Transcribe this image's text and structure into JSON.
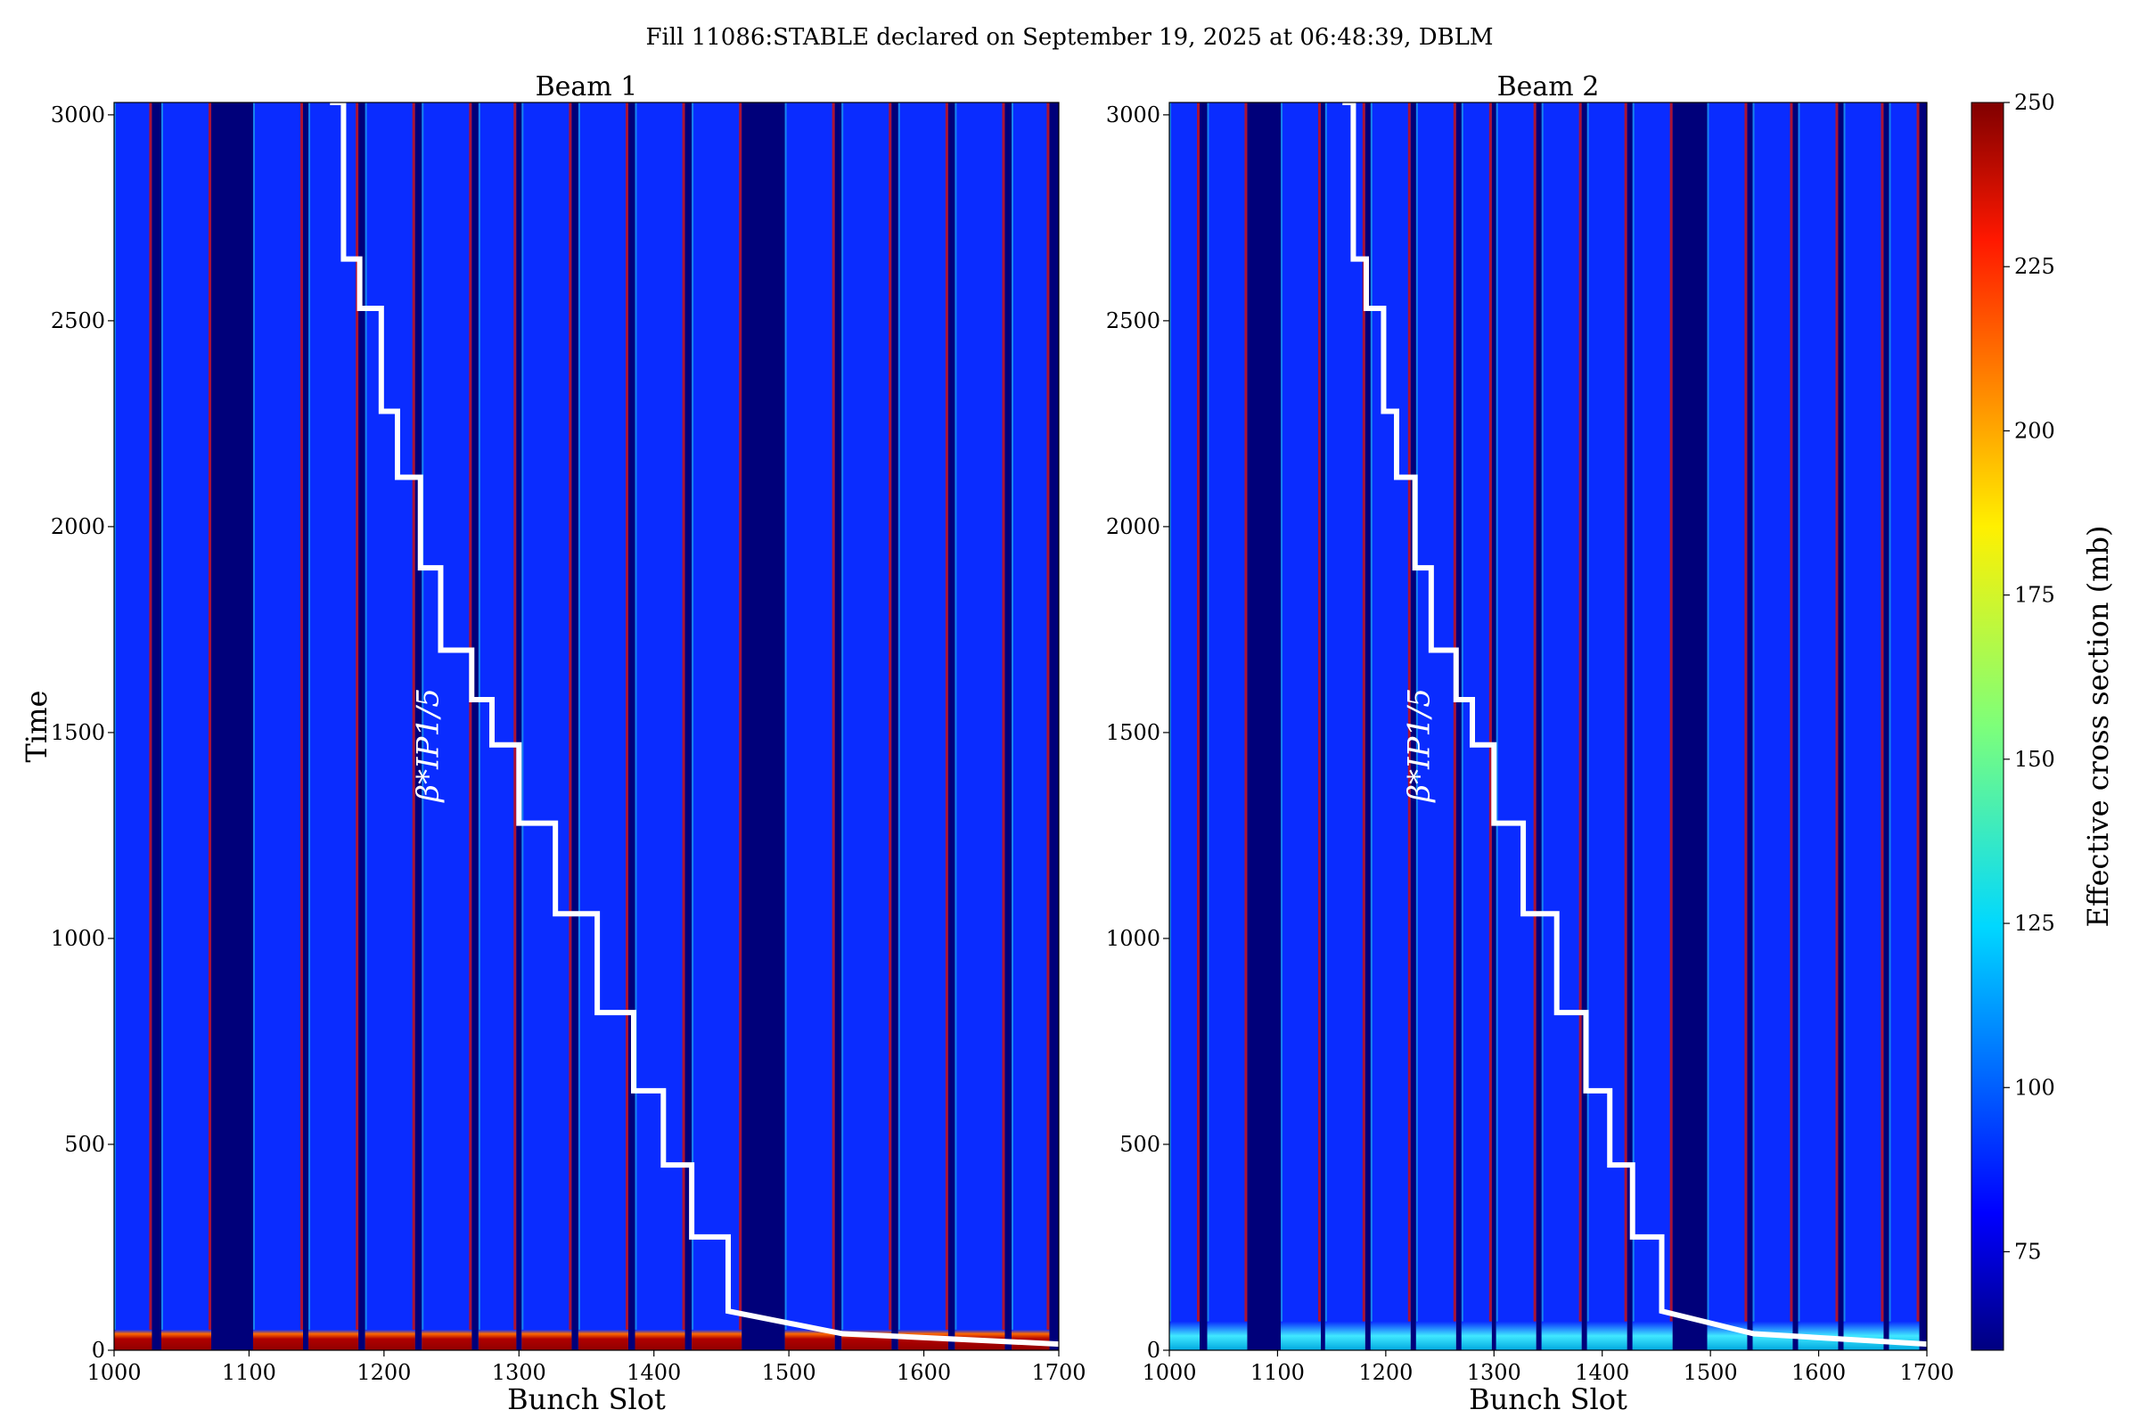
{
  "figure_title": "Fill 11086:STABLE declared on September 19, 2025 at 06:48:39, DBLM",
  "annotation_label": "β*IP1/5",
  "colors": {
    "band_background": "#0000c8",
    "band_fill": "#0a2cff",
    "band_edge_hot": "#c81010",
    "band_edge_cyan": "#20d0e0",
    "gap": "#00007a",
    "beta_line": "#ffffff"
  },
  "colorbar": {
    "label": "Effective cross section (mb)",
    "min": 60,
    "max": 250,
    "ticks": [
      "75",
      "100",
      "125",
      "150",
      "175",
      "200",
      "225",
      "250"
    ],
    "colormap": "jet"
  },
  "chart_data": [
    {
      "type": "heatmap",
      "title": "Beam 1",
      "xlabel": "Bunch Slot",
      "ylabel": "Time",
      "xlim": [
        1000,
        1700
      ],
      "ylim": [
        0,
        3030
      ],
      "xticks": [
        "1000",
        "1100",
        "1200",
        "1300",
        "1400",
        "1500",
        "1600",
        "1700"
      ],
      "yticks": [
        "0",
        "500",
        "1000",
        "1500",
        "2000",
        "2500",
        "3000"
      ],
      "bunch_trains": [
        [
          1000,
          1028
        ],
        [
          1035,
          1072
        ],
        [
          1103,
          1140
        ],
        [
          1144,
          1181
        ],
        [
          1186,
          1223
        ],
        [
          1228,
          1265
        ],
        [
          1270,
          1298
        ],
        [
          1302,
          1339
        ],
        [
          1344,
          1381
        ],
        [
          1386,
          1423
        ],
        [
          1428,
          1465
        ],
        [
          1497,
          1534
        ],
        [
          1539,
          1576
        ],
        [
          1581,
          1618
        ],
        [
          1623,
          1660
        ],
        [
          1665,
          1693
        ]
      ],
      "early_loss_band": {
        "time": [
          0,
          50
        ],
        "level": 240
      },
      "beta_star_step": {
        "time": [
          3030,
          2650,
          2530,
          2280,
          2120,
          1900,
          1700,
          1580,
          1470,
          1280,
          1060,
          820,
          630,
          450,
          275,
          95,
          40,
          15
        ],
        "bunch_slot": [
          1160,
          1170,
          1182,
          1198,
          1210,
          1227,
          1242,
          1265,
          1280,
          1300,
          1327,
          1358,
          1385,
          1407,
          1428,
          1455,
          1540,
          1700
        ]
      }
    },
    {
      "type": "heatmap",
      "title": "Beam 2",
      "xlabel": "Bunch Slot",
      "ylabel": "",
      "xlim": [
        1000,
        1700
      ],
      "ylim": [
        0,
        3030
      ],
      "xticks": [
        "1000",
        "1100",
        "1200",
        "1300",
        "1400",
        "1500",
        "1600",
        "1700"
      ],
      "yticks": [
        "0",
        "500",
        "1000",
        "1500",
        "2000",
        "2500",
        "3000"
      ],
      "bunch_trains": [
        [
          1000,
          1028
        ],
        [
          1035,
          1072
        ],
        [
          1103,
          1140
        ],
        [
          1144,
          1181
        ],
        [
          1186,
          1223
        ],
        [
          1228,
          1265
        ],
        [
          1270,
          1298
        ],
        [
          1302,
          1339
        ],
        [
          1344,
          1381
        ],
        [
          1386,
          1423
        ],
        [
          1428,
          1465
        ],
        [
          1497,
          1534
        ],
        [
          1539,
          1576
        ],
        [
          1581,
          1618
        ],
        [
          1623,
          1660
        ],
        [
          1665,
          1693
        ]
      ],
      "early_loss_band": {
        "time": [
          0,
          70
        ],
        "level": 135
      },
      "beta_star_step": {
        "time": [
          3030,
          2650,
          2530,
          2280,
          2120,
          1900,
          1700,
          1580,
          1470,
          1280,
          1060,
          820,
          630,
          450,
          275,
          95,
          40,
          15
        ],
        "bunch_slot": [
          1160,
          1170,
          1182,
          1198,
          1210,
          1227,
          1242,
          1265,
          1280,
          1300,
          1327,
          1358,
          1385,
          1407,
          1428,
          1455,
          1540,
          1700
        ]
      }
    }
  ]
}
